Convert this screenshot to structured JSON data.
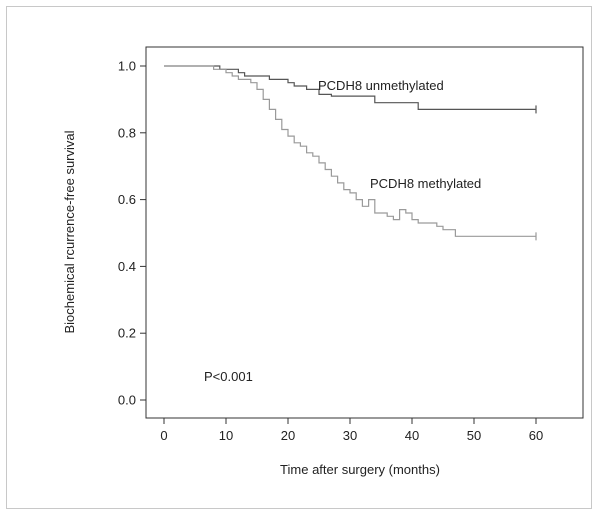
{
  "chart_data": {
    "type": "line",
    "subtype": "kaplan-meier survival curve",
    "title": "",
    "xlabel": "Time after surgery (months)",
    "ylabel": "Biochemical rcurrence-free survival",
    "xlim": [
      0,
      60
    ],
    "ylim": [
      0,
      1
    ],
    "x_ticks": [
      0,
      10,
      20,
      30,
      40,
      50,
      60
    ],
    "y_ticks": [
      0.0,
      0.2,
      0.4,
      0.6,
      0.8,
      1.0
    ],
    "x_tick_labels": [
      "0",
      "10",
      "20",
      "30",
      "40",
      "50",
      "60"
    ],
    "y_tick_labels": [
      "0.0",
      "0.2",
      "0.4",
      "0.6",
      "0.8",
      "1.0"
    ],
    "grid": false,
    "legend": "none",
    "annotation": "P<0.001",
    "series": [
      {
        "name": "PCDH8 unmethylated",
        "color": "#555555",
        "step": true,
        "x": [
          0,
          9,
          12,
          13,
          17,
          20,
          21,
          23,
          25,
          27,
          34,
          41,
          60
        ],
        "y": [
          1.0,
          0.99,
          0.98,
          0.97,
          0.96,
          0.95,
          0.94,
          0.93,
          0.915,
          0.91,
          0.89,
          0.87,
          0.87
        ],
        "censor_marks": [
          60
        ]
      },
      {
        "name": "PCDH8 methylated",
        "color": "#9a9a9a",
        "step": true,
        "x": [
          0,
          8,
          10,
          11,
          12,
          14,
          15,
          16,
          17,
          18,
          19,
          20,
          21,
          22,
          23,
          24,
          25,
          26,
          27,
          28,
          29,
          30,
          31,
          32,
          33,
          34,
          36,
          37,
          38,
          39,
          40,
          41,
          42,
          44,
          45,
          47,
          60
        ],
        "y": [
          1.0,
          0.99,
          0.98,
          0.97,
          0.96,
          0.95,
          0.93,
          0.9,
          0.87,
          0.84,
          0.81,
          0.79,
          0.77,
          0.76,
          0.74,
          0.73,
          0.71,
          0.69,
          0.67,
          0.65,
          0.63,
          0.62,
          0.6,
          0.58,
          0.6,
          0.56,
          0.55,
          0.54,
          0.57,
          0.56,
          0.54,
          0.53,
          0.53,
          0.52,
          0.51,
          0.49,
          0.49
        ],
        "censor_marks": [
          60
        ]
      }
    ]
  }
}
